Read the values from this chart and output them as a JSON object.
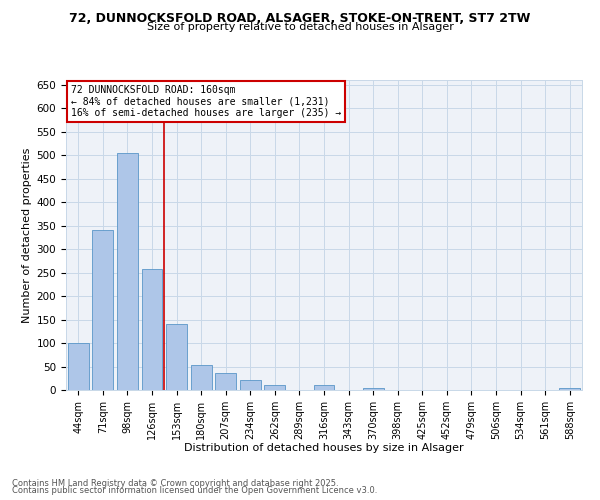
{
  "title1": "72, DUNNOCKSFOLD ROAD, ALSAGER, STOKE-ON-TRENT, ST7 2TW",
  "title2": "Size of property relative to detached houses in Alsager",
  "xlabel": "Distribution of detached houses by size in Alsager",
  "ylabel": "Number of detached properties",
  "categories": [
    "44sqm",
    "71sqm",
    "98sqm",
    "126sqm",
    "153sqm",
    "180sqm",
    "207sqm",
    "234sqm",
    "262sqm",
    "289sqm",
    "316sqm",
    "343sqm",
    "370sqm",
    "398sqm",
    "425sqm",
    "452sqm",
    "479sqm",
    "506sqm",
    "534sqm",
    "561sqm",
    "588sqm"
  ],
  "values": [
    100,
    340,
    505,
    257,
    140,
    53,
    37,
    21,
    10,
    0,
    10,
    0,
    5,
    0,
    0,
    0,
    0,
    0,
    0,
    0,
    4
  ],
  "bar_color": "#aec6e8",
  "bar_edge_color": "#5a96c8",
  "annotation_text": "72 DUNNOCKSFOLD ROAD: 160sqm\n← 84% of detached houses are smaller (1,231)\n16% of semi-detached houses are larger (235) →",
  "annotation_box_color": "#ffffff",
  "annotation_box_edge": "#cc0000",
  "red_line_color": "#cc0000",
  "grid_color": "#c8d8e8",
  "background_color": "#eef2f8",
  "footer1": "Contains HM Land Registry data © Crown copyright and database right 2025.",
  "footer2": "Contains public sector information licensed under the Open Government Licence v3.0.",
  "ylim": [
    0,
    660
  ],
  "yticks": [
    0,
    50,
    100,
    150,
    200,
    250,
    300,
    350,
    400,
    450,
    500,
    550,
    600,
    650
  ]
}
